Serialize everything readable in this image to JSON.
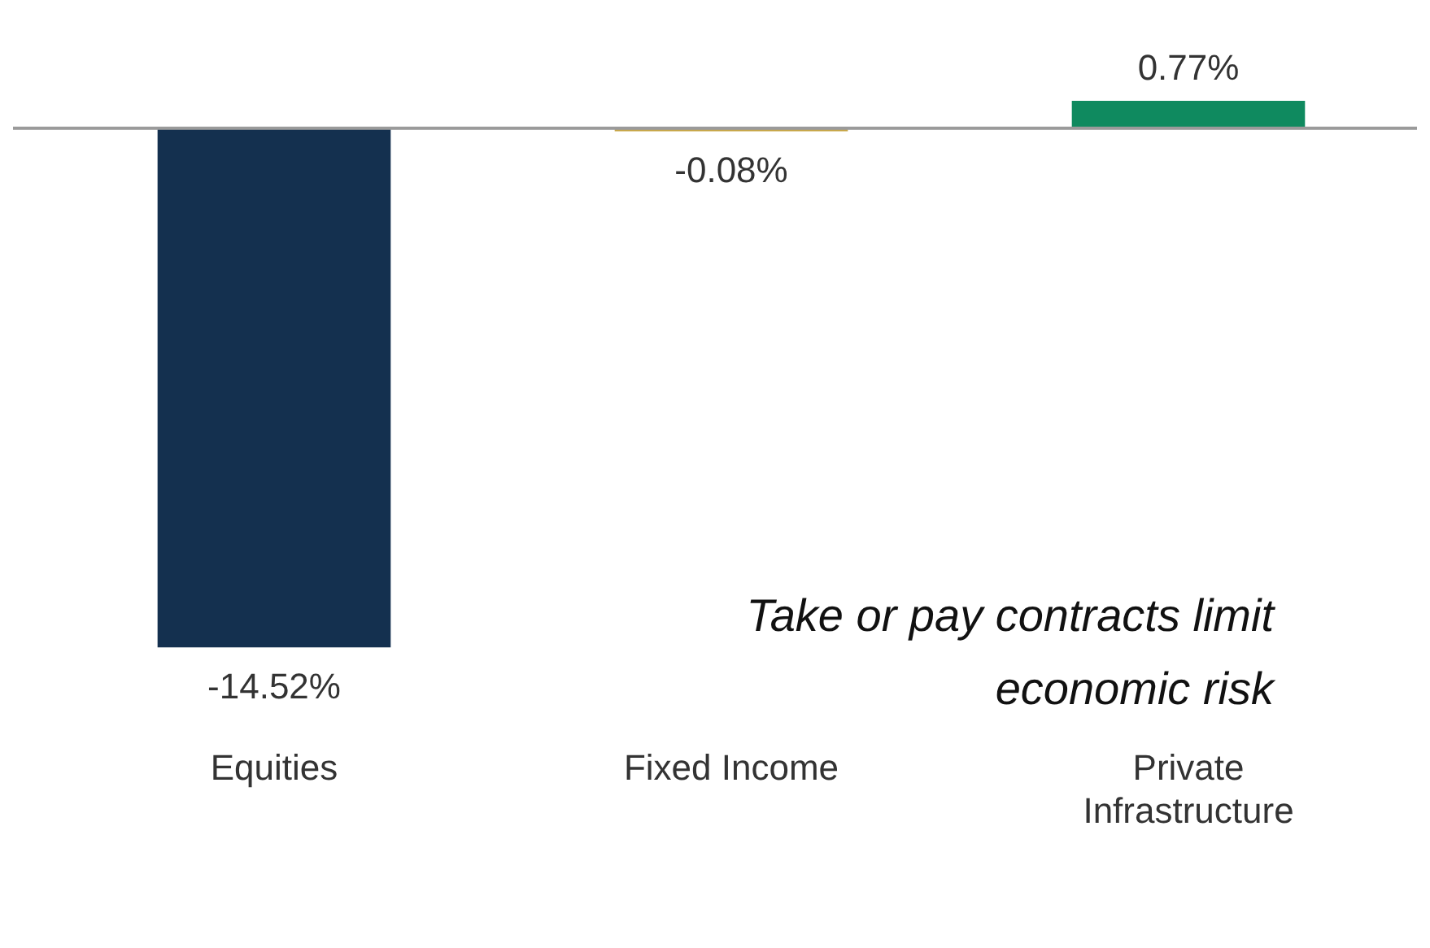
{
  "chart_data": {
    "type": "bar",
    "categories": [
      "Equities",
      "Fixed Income",
      "Private Infrastructure"
    ],
    "values": [
      -14.52,
      -0.08,
      0.77
    ],
    "colors": [
      "#14304f",
      "#c8a84b",
      "#0f8a5f"
    ],
    "value_labels": [
      "-14.52%",
      "-0.08%",
      "0.77%"
    ],
    "annotations": [
      "Take or pay contracts limit economic risk"
    ],
    "grid": false,
    "legend": false
  }
}
